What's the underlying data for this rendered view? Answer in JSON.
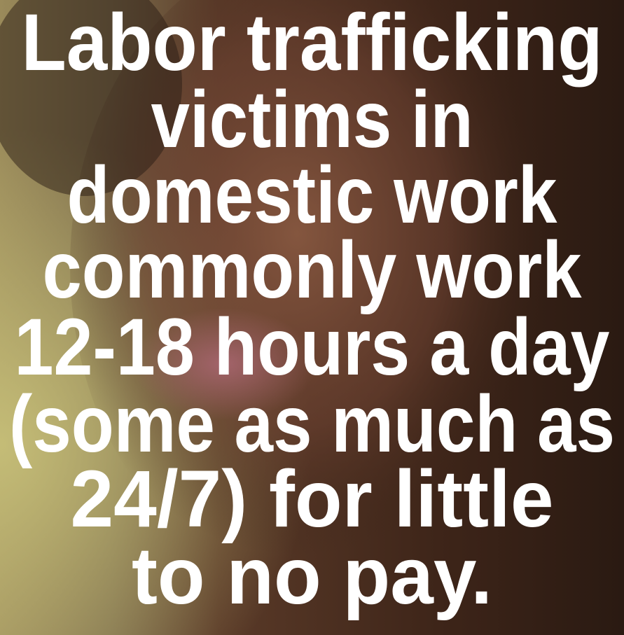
{
  "poster": {
    "lines": [
      "Labor trafficking",
      "victims in",
      "domestic work",
      "commonly work",
      "12-18 hours a day",
      "(some as much as",
      "24/7) for little",
      "to no pay."
    ]
  }
}
